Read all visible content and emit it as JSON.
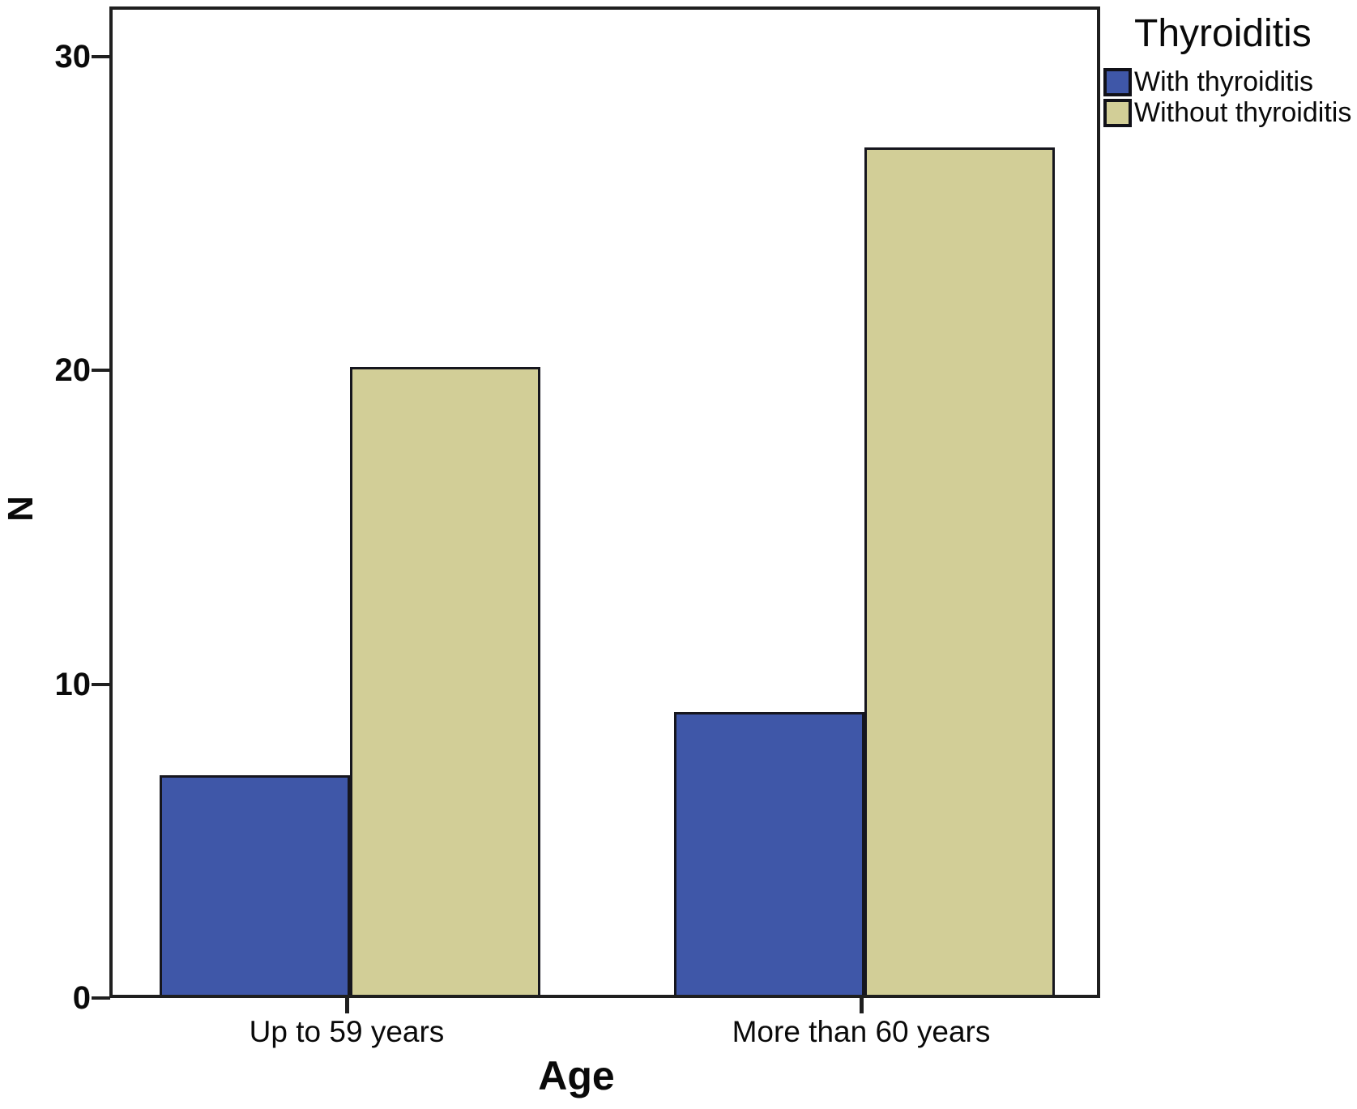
{
  "chart_data": {
    "type": "bar",
    "legend_title": "Thyroiditis",
    "xlabel": "Age",
    "ylabel": "N",
    "categories": [
      "Up to 59 years",
      "More than 60 years"
    ],
    "series": [
      {
        "name": "With thyroiditis",
        "color": "#3F57A8",
        "values": [
          7,
          9
        ]
      },
      {
        "name": "Without thyroiditis",
        "color": "#D2CE97",
        "values": [
          20,
          27
        ]
      }
    ],
    "yticks": [
      0,
      10,
      20,
      30
    ],
    "ylim": [
      0,
      31.6
    ],
    "grid": false,
    "legend_position": "top-right"
  }
}
